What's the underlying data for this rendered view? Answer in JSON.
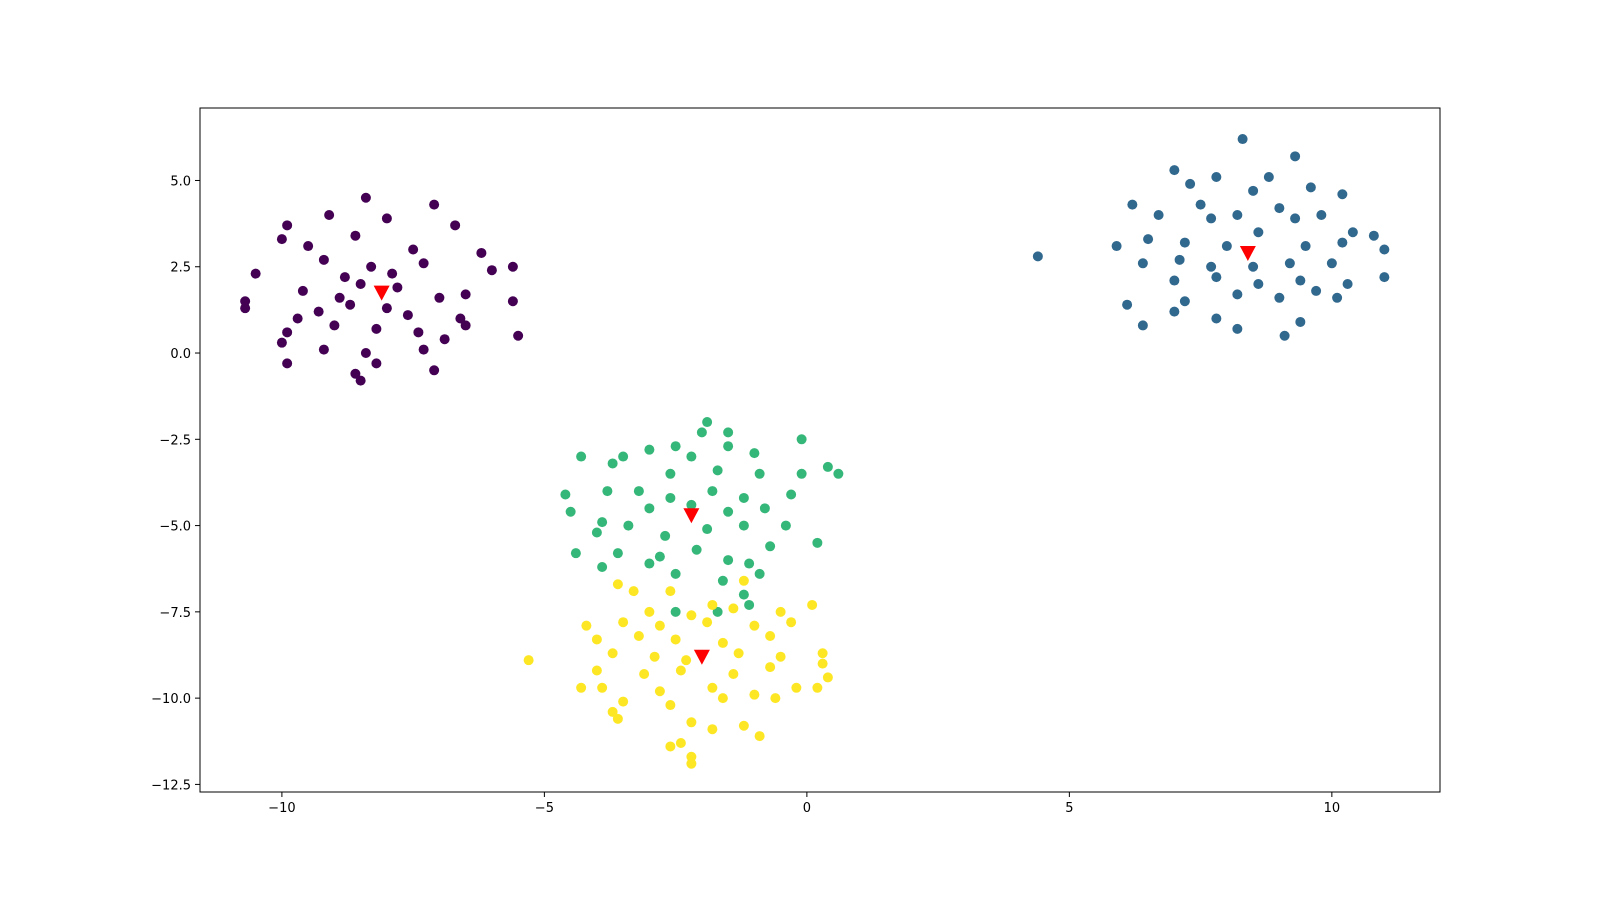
{
  "chart_data": {
    "type": "scatter",
    "xlim": [
      -11.56,
      12.06
    ],
    "ylim": [
      -12.72,
      7.1
    ],
    "xticks": [
      {
        "value": -10,
        "label": "−10"
      },
      {
        "value": -5,
        "label": "−5"
      },
      0,
      5,
      10
    ],
    "yticks": [
      {
        "value": 5,
        "label": "5.0"
      },
      {
        "value": 2.5,
        "label": "2.5"
      },
      {
        "value": 0,
        "label": "0.0"
      },
      {
        "value": -2.5,
        "label": "−2.5"
      },
      {
        "value": -5,
        "label": "−5.0"
      },
      {
        "value": -7.5,
        "label": "−7.5"
      },
      {
        "value": -10,
        "label": "−10.0"
      },
      {
        "value": -12.5,
        "label": "−12.5"
      }
    ],
    "series": [
      {
        "color": "#440154",
        "marker": "circle",
        "x": [
          -8.4,
          -7.1,
          -9.1,
          -9.9,
          -8.0,
          -6.7,
          -10.0,
          -9.5,
          -8.6,
          -7.5,
          -6.2,
          -10.5,
          -9.2,
          -8.3,
          -7.3,
          -6.0,
          -5.6,
          -10.7,
          -9.6,
          -8.9,
          -8.5,
          -7.8,
          -7.0,
          -6.5,
          -5.6,
          -10.7,
          -9.3,
          -8.7,
          -8.0,
          -7.6,
          -6.6,
          -5.5,
          -9.9,
          -9.0,
          -8.2,
          -7.4,
          -6.9,
          -10.0,
          -9.2,
          -8.4,
          -7.3,
          -9.9,
          -8.6,
          -8.2,
          -7.1,
          -8.5,
          -6.5,
          -9.7,
          -8.8,
          -7.9
        ],
        "values": [
          4.5,
          4.3,
          4.0,
          3.7,
          3.9,
          3.7,
          3.3,
          3.1,
          3.4,
          3.0,
          2.9,
          2.3,
          2.7,
          2.5,
          2.6,
          2.4,
          2.5,
          1.5,
          1.8,
          1.6,
          2.0,
          1.9,
          1.6,
          1.7,
          1.5,
          1.3,
          1.2,
          1.4,
          1.3,
          1.1,
          1.0,
          0.5,
          0.6,
          0.8,
          0.7,
          0.6,
          0.4,
          0.3,
          0.1,
          0.0,
          0.1,
          -0.3,
          -0.6,
          -0.3,
          -0.5,
          -0.8,
          0.8,
          1.0,
          2.2,
          2.3
        ]
      },
      {
        "color": "#31688e",
        "marker": "circle",
        "x": [
          8.3,
          9.3,
          7.0,
          7.3,
          7.8,
          8.8,
          9.6,
          10.2,
          6.2,
          7.5,
          8.5,
          9.0,
          9.8,
          6.7,
          7.7,
          8.2,
          9.3,
          10.4,
          10.8,
          5.9,
          6.5,
          7.2,
          8.0,
          8.6,
          9.5,
          10.2,
          11.0,
          4.4,
          6.4,
          7.1,
          7.7,
          8.5,
          9.2,
          10.0,
          7.0,
          7.8,
          8.6,
          9.4,
          10.3,
          11.0,
          6.1,
          7.2,
          8.2,
          9.0,
          9.7,
          10.1,
          6.4,
          7.8,
          8.2,
          9.1,
          9.4,
          7.0
        ],
        "values": [
          6.2,
          5.7,
          5.3,
          4.9,
          5.1,
          5.1,
          4.8,
          4.6,
          4.3,
          4.3,
          4.7,
          4.2,
          4.0,
          4.0,
          3.9,
          4.0,
          3.9,
          3.5,
          3.4,
          3.1,
          3.3,
          3.2,
          3.1,
          3.5,
          3.1,
          3.2,
          3.0,
          2.8,
          2.6,
          2.7,
          2.5,
          2.5,
          2.6,
          2.6,
          2.1,
          2.2,
          2.0,
          2.1,
          2.0,
          2.2,
          1.4,
          1.5,
          1.7,
          1.6,
          1.8,
          1.6,
          0.8,
          1.0,
          0.7,
          0.5,
          0.9,
          1.2
        ]
      },
      {
        "color": "#35b779",
        "marker": "circle",
        "x": [
          -1.9,
          -2.0,
          -1.5,
          -2.5,
          -3.0,
          -1.5,
          -0.1,
          -3.5,
          -2.2,
          -1.0,
          0.4,
          0.6,
          -4.3,
          -3.7,
          -2.6,
          -1.7,
          -0.9,
          -0.1,
          -4.6,
          -3.8,
          -3.2,
          -2.6,
          -1.8,
          -1.2,
          -0.3,
          -4.5,
          -3.9,
          -3.0,
          -2.2,
          -1.5,
          -0.8,
          -4.0,
          -3.4,
          -2.7,
          -1.9,
          -1.2,
          -0.4,
          0.2,
          -4.4,
          -3.6,
          -2.8,
          -2.1,
          -1.5,
          -0.7,
          -3.9,
          -3.0,
          -2.5,
          -1.6,
          -1.1,
          -0.9,
          -2.5,
          -1.7,
          -1.1,
          -1.2
        ],
        "values": [
          -2.0,
          -2.3,
          -2.3,
          -2.7,
          -2.8,
          -2.7,
          -2.5,
          -3.0,
          -3.0,
          -2.9,
          -3.3,
          -3.5,
          -3.0,
          -3.2,
          -3.5,
          -3.4,
          -3.5,
          -3.5,
          -4.1,
          -4.0,
          -4.0,
          -4.2,
          -4.0,
          -4.2,
          -4.1,
          -4.6,
          -4.9,
          -4.5,
          -4.4,
          -4.6,
          -4.5,
          -5.2,
          -5.0,
          -5.3,
          -5.1,
          -5.0,
          -5.0,
          -5.5,
          -5.8,
          -5.8,
          -5.9,
          -5.7,
          -6.0,
          -5.6,
          -6.2,
          -6.1,
          -6.4,
          -6.6,
          -6.1,
          -6.4,
          -7.5,
          -7.5,
          -7.3,
          -7.0
        ]
      },
      {
        "color": "#fde725",
        "marker": "circle",
        "x": [
          -3.6,
          -3.3,
          -2.6,
          -1.2,
          -1.8,
          -3.0,
          -2.2,
          -1.4,
          -0.5,
          0.1,
          -4.2,
          -3.5,
          -2.8,
          -1.9,
          -1.0,
          -0.3,
          -4.0,
          -3.2,
          -2.5,
          -1.6,
          -0.7,
          -3.7,
          -2.9,
          -2.3,
          -1.3,
          -0.5,
          0.3,
          -5.3,
          -4.0,
          -3.1,
          -2.4,
          -1.4,
          -0.7,
          0.3,
          -3.9,
          -2.8,
          -1.8,
          -1.0,
          -0.2,
          0.4,
          -4.3,
          -3.5,
          -2.6,
          -1.6,
          -0.6,
          0.2,
          -3.7,
          -3.6,
          -2.2,
          -1.8,
          -1.2,
          -0.9,
          -2.6,
          -2.4,
          -2.2,
          -2.2
        ],
        "values": [
          -6.7,
          -6.9,
          -6.9,
          -6.6,
          -7.3,
          -7.5,
          -7.6,
          -7.4,
          -7.5,
          -7.3,
          -7.9,
          -7.8,
          -7.9,
          -7.8,
          -7.9,
          -7.8,
          -8.3,
          -8.2,
          -8.3,
          -8.4,
          -8.2,
          -8.7,
          -8.8,
          -8.9,
          -8.7,
          -8.8,
          -8.7,
          -8.9,
          -9.2,
          -9.3,
          -9.2,
          -9.3,
          -9.1,
          -9.0,
          -9.7,
          -9.8,
          -9.7,
          -9.9,
          -9.7,
          -9.4,
          -9.7,
          -10.1,
          -10.2,
          -10.0,
          -10.0,
          -9.7,
          -10.4,
          -10.6,
          -10.7,
          -10.9,
          -10.8,
          -11.1,
          -11.4,
          -11.3,
          -11.7,
          -11.9
        ]
      },
      {
        "color": "#ff0000",
        "marker": "triangle_down",
        "x": [
          -8.1,
          8.4,
          -2.2,
          -2.0
        ],
        "values": [
          1.75,
          2.9,
          -4.7,
          -8.8
        ]
      }
    ]
  }
}
